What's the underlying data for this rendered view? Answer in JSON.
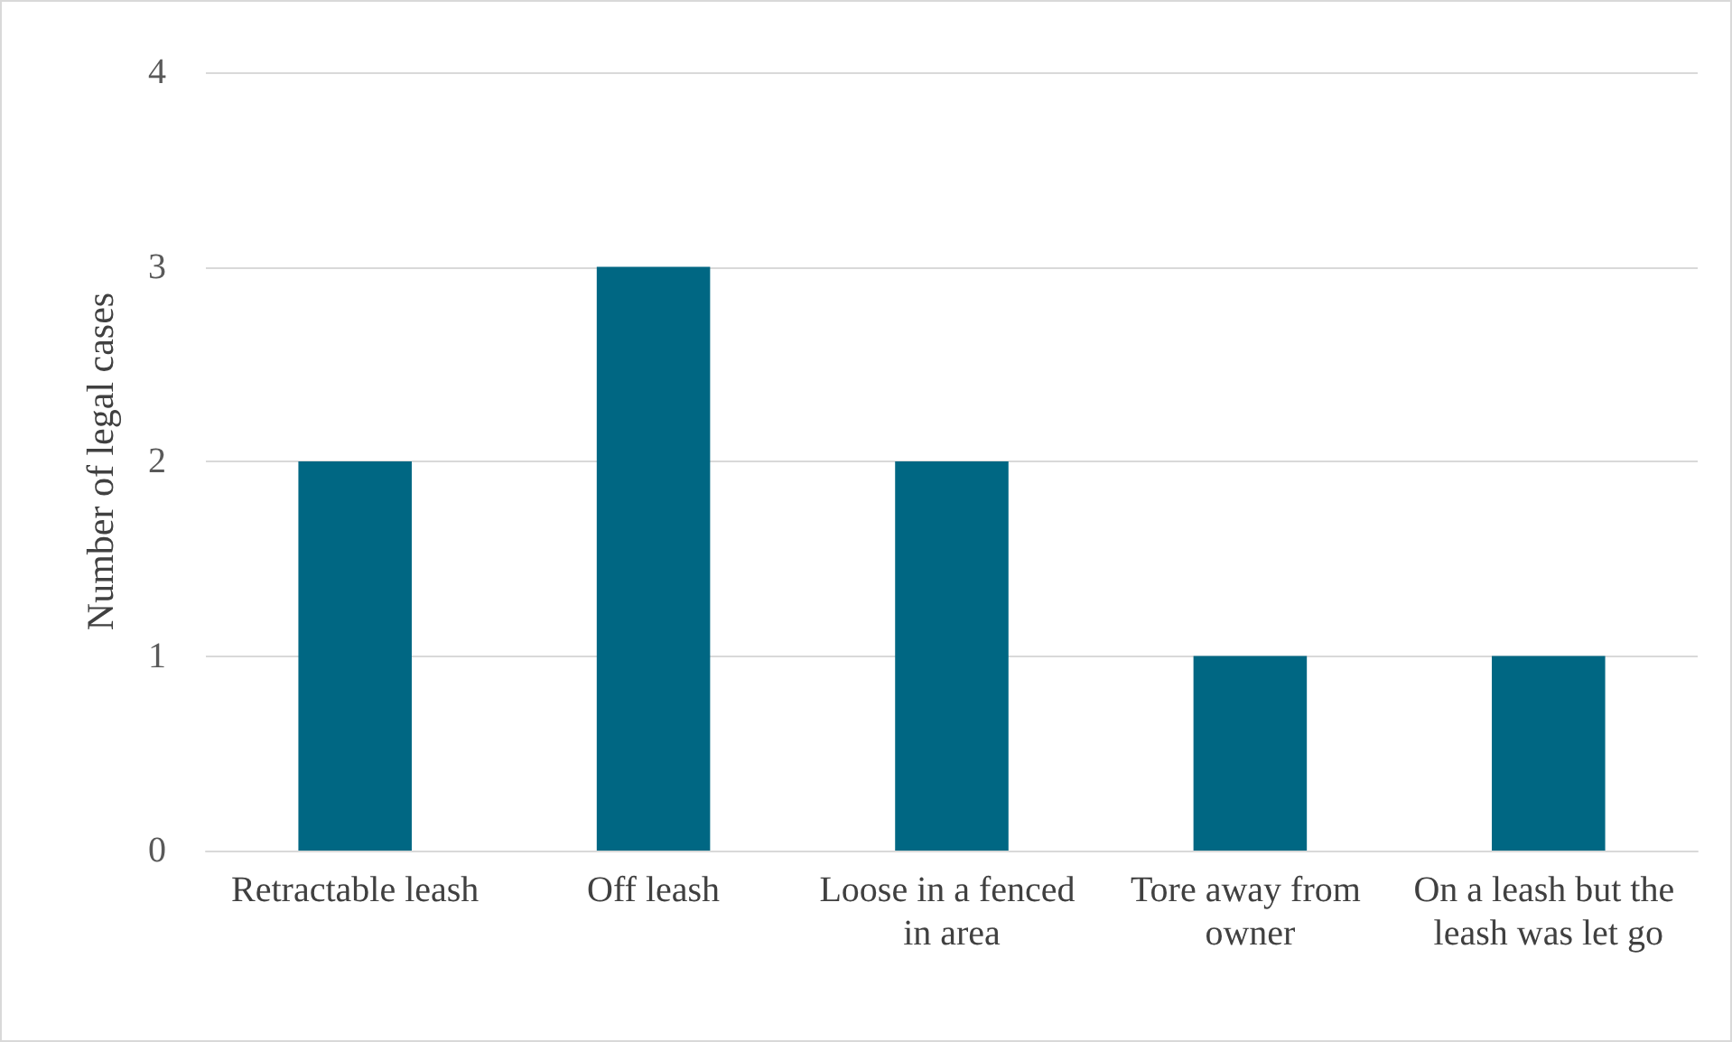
{
  "chart_data": {
    "type": "bar",
    "ylabel": "Number of legal cases",
    "categories": [
      "Retractable leash",
      "Off leash",
      "Loose in a fenced in area",
      "Tore away from owner",
      "On a leash but the leash was let go"
    ],
    "values": [
      2,
      3,
      2,
      1,
      1
    ],
    "color": "#006783",
    "ylim": [
      0,
      4
    ],
    "yticks": [
      0,
      1,
      2,
      3,
      4
    ],
    "grid": "y"
  }
}
